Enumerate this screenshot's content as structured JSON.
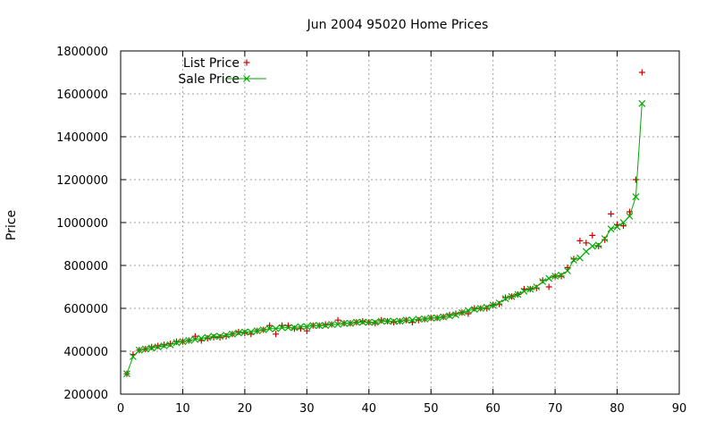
{
  "chart_data": {
    "type": "line",
    "title": "Jun 2004 95020 Home Prices",
    "xlabel": "",
    "ylabel": "Price",
    "xlim": [
      0,
      90
    ],
    "ylim": [
      200000,
      1800000
    ],
    "xticks": [
      0,
      10,
      20,
      30,
      40,
      50,
      60,
      70,
      80,
      90
    ],
    "yticks": [
      200000,
      400000,
      600000,
      800000,
      1000000,
      1200000,
      1400000,
      1600000,
      1800000
    ],
    "grid": true,
    "legend_position": "top-left",
    "series": [
      {
        "name": "List Price",
        "style": "points",
        "marker": "plus",
        "color": "#cc0000",
        "x": [
          1,
          2,
          3,
          4,
          5,
          6,
          7,
          8,
          9,
          10,
          11,
          12,
          13,
          14,
          15,
          16,
          17,
          18,
          19,
          20,
          21,
          22,
          23,
          24,
          25,
          26,
          27,
          28,
          29,
          30,
          31,
          32,
          33,
          34,
          35,
          36,
          37,
          38,
          39,
          40,
          41,
          42,
          43,
          44,
          45,
          46,
          47,
          48,
          49,
          50,
          51,
          52,
          53,
          54,
          55,
          56,
          57,
          58,
          59,
          60,
          61,
          62,
          63,
          64,
          65,
          66,
          67,
          68,
          69,
          70,
          71,
          72,
          73,
          74,
          75,
          76,
          77,
          78,
          79,
          80,
          81,
          82,
          83,
          84
        ],
        "y": [
          295000,
          385000,
          405000,
          410000,
          420000,
          425000,
          430000,
          435000,
          445000,
          445000,
          450000,
          470000,
          450000,
          460000,
          465000,
          465000,
          470000,
          480000,
          490000,
          485000,
          480000,
          495000,
          500000,
          520000,
          480000,
          520000,
          520000,
          505000,
          505000,
          495000,
          520000,
          520000,
          525000,
          525000,
          545000,
          530000,
          530000,
          535000,
          540000,
          535000,
          530000,
          545000,
          540000,
          535000,
          540000,
          545000,
          535000,
          545000,
          550000,
          555000,
          555000,
          560000,
          570000,
          575000,
          580000,
          575000,
          600000,
          600000,
          600000,
          615000,
          620000,
          650000,
          655000,
          665000,
          690000,
          690000,
          695000,
          730000,
          700000,
          750000,
          750000,
          790000,
          830000,
          915000,
          905000,
          940000,
          890000,
          920000,
          1040000,
          990000,
          985000,
          1050000,
          1200000,
          1700000
        ]
      },
      {
        "name": "Sale Price",
        "style": "linespoints",
        "marker": "cross",
        "color": "#00aa00",
        "x": [
          1,
          2,
          3,
          4,
          5,
          6,
          7,
          8,
          9,
          10,
          11,
          12,
          13,
          14,
          15,
          16,
          17,
          18,
          19,
          20,
          21,
          22,
          23,
          24,
          25,
          26,
          27,
          28,
          29,
          30,
          31,
          32,
          33,
          34,
          35,
          36,
          37,
          38,
          39,
          40,
          41,
          42,
          43,
          44,
          45,
          46,
          47,
          48,
          49,
          50,
          51,
          52,
          53,
          54,
          55,
          56,
          57,
          58,
          59,
          60,
          61,
          62,
          63,
          64,
          65,
          66,
          67,
          68,
          69,
          70,
          71,
          72,
          73,
          74,
          75,
          76,
          77,
          78,
          79,
          80,
          81,
          82,
          83,
          84
        ],
        "y": [
          295000,
          375000,
          405000,
          410000,
          415000,
          420000,
          425000,
          430000,
          440000,
          445000,
          450000,
          455000,
          460000,
          465000,
          470000,
          470000,
          475000,
          480000,
          485000,
          490000,
          490000,
          495000,
          500000,
          505000,
          505000,
          510000,
          510000,
          510000,
          515000,
          515000,
          520000,
          520000,
          520000,
          525000,
          525000,
          530000,
          530000,
          535000,
          535000,
          535000,
          535000,
          540000,
          540000,
          540000,
          540000,
          545000,
          545000,
          550000,
          550000,
          555000,
          555000,
          560000,
          565000,
          570000,
          580000,
          590000,
          595000,
          600000,
          605000,
          615000,
          625000,
          645000,
          655000,
          665000,
          680000,
          690000,
          700000,
          725000,
          740000,
          750000,
          755000,
          775000,
          825000,
          835000,
          865000,
          890000,
          895000,
          925000,
          970000,
          980000,
          1000000,
          1030000,
          1120000,
          1555000
        ]
      }
    ]
  }
}
